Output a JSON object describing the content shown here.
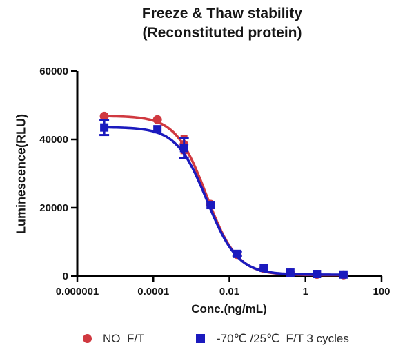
{
  "header": {
    "title_line1": "Freeze & Thaw stability",
    "title_line2": "(Reconstituted protein)"
  },
  "chart_data": {
    "type": "line",
    "title": "Freeze & Thaw stability (Reconstituted protein)",
    "xlabel": "Conc.(ng/mL)",
    "ylabel": "Luminescence(RLU)",
    "x_scale": "log10",
    "xlim": [
      1e-06,
      100
    ],
    "ylim": [
      0,
      60000
    ],
    "x_ticks": [
      1e-06,
      0.0001,
      0.01,
      1,
      100
    ],
    "x_tick_labels": [
      "0.000001",
      "0.0001",
      "0.01",
      "1",
      "100"
    ],
    "y_ticks": [
      0,
      20000,
      40000,
      60000
    ],
    "y_tick_labels": [
      "0",
      "20000",
      "40000",
      "60000"
    ],
    "grid": false,
    "legend_position": "bottom",
    "axis_color": "#000000",
    "text_color": "#141414",
    "x": [
      5.12e-06,
      0.000128,
      0.00064,
      0.0032,
      0.016,
      0.08,
      0.4,
      2,
      10
    ],
    "series": [
      {
        "name": "NO  F/T",
        "marker": "circle",
        "color": "#d03940",
        "values": [
          46800,
          45800,
          38500,
          21000,
          6300,
          2200,
          900,
          500,
          350
        ],
        "errors": [
          0,
          0,
          2500,
          0,
          0,
          0,
          0,
          0,
          0
        ],
        "fit": {
          "top": 46900,
          "bottom": 300,
          "ic50": 0.0025,
          "hill": 1.08
        }
      },
      {
        "name": "-70℃ /25℃  F/T 3 cycles",
        "marker": "square",
        "color": "#1b1abe",
        "values": [
          43500,
          43000,
          37500,
          20800,
          6500,
          2400,
          1000,
          600,
          450
        ],
        "errors": [
          2200,
          0,
          3000,
          0,
          700,
          0,
          0,
          0,
          0
        ],
        "fit": {
          "top": 43600,
          "bottom": 400,
          "ic50": 0.0026,
          "hill": 1.08
        }
      }
    ]
  }
}
